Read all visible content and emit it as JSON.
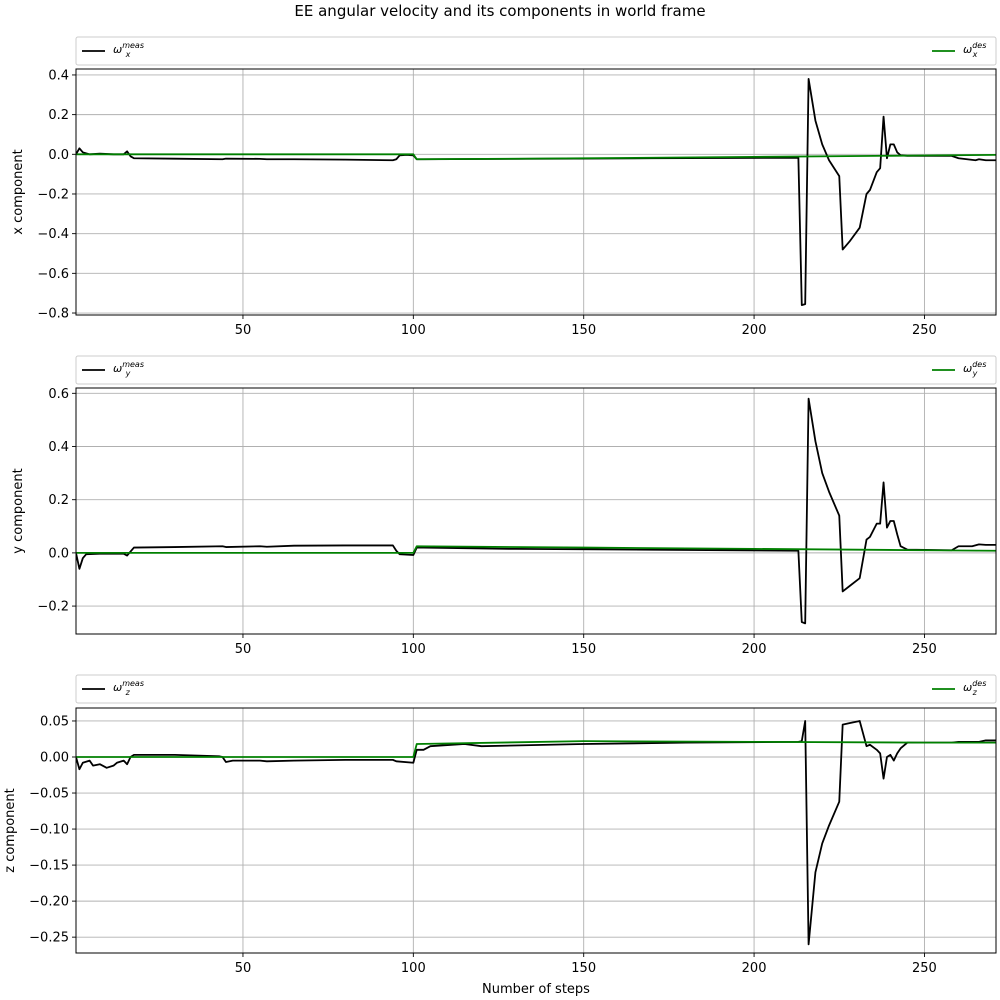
{
  "title": "EE angular velocity and its components in world frame",
  "colors": {
    "meas": "#000000",
    "des": "#008000",
    "grid": "#b0b0b0"
  },
  "chart_data": [
    {
      "type": "line",
      "ylabel": "x component",
      "xlabel": "",
      "xlim": [
        1,
        271
      ],
      "ylim": [
        -0.81,
        0.43
      ],
      "xticks": [
        50,
        100,
        150,
        200,
        250
      ],
      "xtick_labels": [
        "50",
        "100",
        "150",
        "200",
        "250"
      ],
      "yticks": [
        -0.8,
        -0.6,
        -0.4,
        -0.2,
        0.0,
        0.2,
        0.4
      ],
      "ytick_labels": [
        "−0.8",
        "−0.6",
        "−0.4",
        "−0.2",
        "0.0",
        "0.2",
        "0.4"
      ],
      "grid": true,
      "legend": {
        "left": {
          "sym": "ω",
          "sub": "x",
          "sup": "meas"
        },
        "right": {
          "sym": "ω",
          "sub": "x",
          "sup": "des"
        }
      },
      "series": [
        {
          "key": "meas",
          "points": [
            [
              1,
              0.0
            ],
            [
              2,
              0.03
            ],
            [
              3,
              0.01
            ],
            [
              5,
              0.0
            ],
            [
              8,
              0.003
            ],
            [
              12,
              0.0
            ],
            [
              15,
              0.0
            ],
            [
              16,
              0.015
            ],
            [
              17,
              -0.01
            ],
            [
              18,
              -0.02
            ],
            [
              30,
              -0.022
            ],
            [
              44,
              -0.025
            ],
            [
              45,
              -0.022
            ],
            [
              55,
              -0.023
            ],
            [
              57,
              -0.025
            ],
            [
              65,
              -0.025
            ],
            [
              80,
              -0.027
            ],
            [
              94,
              -0.03
            ],
            [
              95,
              -0.025
            ],
            [
              96,
              -0.005
            ],
            [
              98,
              -0.003
            ],
            [
              100,
              -0.005
            ],
            [
              101,
              -0.025
            ],
            [
              103,
              -0.025
            ],
            [
              130,
              -0.023
            ],
            [
              170,
              -0.02
            ],
            [
              213,
              -0.017
            ],
            [
              214,
              -0.76
            ],
            [
              215,
              -0.755
            ],
            [
              216,
              0.38
            ],
            [
              218,
              0.17
            ],
            [
              220,
              0.05
            ],
            [
              222,
              -0.03
            ],
            [
              225,
              -0.11
            ],
            [
              226,
              -0.48
            ],
            [
              228,
              -0.44
            ],
            [
              231,
              -0.37
            ],
            [
              233,
              -0.2
            ],
            [
              234,
              -0.18
            ],
            [
              236,
              -0.09
            ],
            [
              237,
              -0.07
            ],
            [
              238,
              0.19
            ],
            [
              239,
              -0.02
            ],
            [
              240,
              0.05
            ],
            [
              241,
              0.05
            ],
            [
              242,
              0.01
            ],
            [
              243,
              -0.005
            ],
            [
              245,
              -0.008
            ],
            [
              258,
              -0.008
            ],
            [
              260,
              -0.02
            ],
            [
              265,
              -0.03
            ],
            [
              266,
              -0.025
            ],
            [
              268,
              -0.03
            ],
            [
              271,
              -0.03
            ]
          ]
        },
        {
          "key": "des",
          "points": [
            [
              1,
              0.0
            ],
            [
              100,
              0.0
            ],
            [
              101,
              -0.025
            ],
            [
              150,
              -0.02
            ],
            [
              200,
              -0.013
            ],
            [
              250,
              -0.006
            ],
            [
              271,
              -0.003
            ]
          ]
        }
      ]
    },
    {
      "type": "line",
      "ylabel": "y component",
      "xlabel": "",
      "xlim": [
        1,
        271
      ],
      "ylim": [
        -0.305,
        0.62
      ],
      "xticks": [
        50,
        100,
        150,
        200,
        250
      ],
      "xtick_labels": [
        "50",
        "100",
        "150",
        "200",
        "250"
      ],
      "yticks": [
        -0.2,
        0.0,
        0.2,
        0.4,
        0.6
      ],
      "ytick_labels": [
        "−0.2",
        "0.0",
        "0.2",
        "0.4",
        "0.6"
      ],
      "grid": true,
      "legend": {
        "left": {
          "sym": "ω",
          "sub": "y",
          "sup": "meas"
        },
        "right": {
          "sym": "ω",
          "sub": "y",
          "sup": "des"
        }
      },
      "series": [
        {
          "key": "meas",
          "points": [
            [
              1,
              0.0
            ],
            [
              2,
              -0.06
            ],
            [
              3,
              -0.02
            ],
            [
              4,
              -0.005
            ],
            [
              8,
              -0.003
            ],
            [
              15,
              -0.003
            ],
            [
              16,
              -0.01
            ],
            [
              17,
              0.005
            ],
            [
              18,
              0.02
            ],
            [
              30,
              0.022
            ],
            [
              44,
              0.025
            ],
            [
              45,
              0.022
            ],
            [
              55,
              0.025
            ],
            [
              57,
              0.023
            ],
            [
              65,
              0.027
            ],
            [
              80,
              0.028
            ],
            [
              94,
              0.028
            ],
            [
              95,
              0.008
            ],
            [
              96,
              -0.005
            ],
            [
              100,
              -0.008
            ],
            [
              101,
              0.02
            ],
            [
              103,
              0.02
            ],
            [
              130,
              0.015
            ],
            [
              170,
              0.012
            ],
            [
              213,
              0.008
            ],
            [
              214,
              -0.26
            ],
            [
              215,
              -0.265
            ],
            [
              216,
              0.58
            ],
            [
              218,
              0.42
            ],
            [
              220,
              0.3
            ],
            [
              222,
              0.23
            ],
            [
              225,
              0.14
            ],
            [
              226,
              -0.145
            ],
            [
              228,
              -0.125
            ],
            [
              231,
              -0.095
            ],
            [
              233,
              0.05
            ],
            [
              234,
              0.06
            ],
            [
              236,
              0.11
            ],
            [
              237,
              0.11
            ],
            [
              238,
              0.265
            ],
            [
              239,
              0.095
            ],
            [
              240,
              0.12
            ],
            [
              241,
              0.12
            ],
            [
              242,
              0.07
            ],
            [
              243,
              0.025
            ],
            [
              245,
              0.012
            ],
            [
              258,
              0.01
            ],
            [
              260,
              0.025
            ],
            [
              264,
              0.025
            ],
            [
              266,
              0.032
            ],
            [
              268,
              0.03
            ],
            [
              271,
              0.03
            ]
          ]
        },
        {
          "key": "des",
          "points": [
            [
              1,
              0.0
            ],
            [
              100,
              0.0
            ],
            [
              101,
              0.025
            ],
            [
              150,
              0.02
            ],
            [
              200,
              0.015
            ],
            [
              250,
              0.01
            ],
            [
              271,
              0.008
            ]
          ]
        }
      ]
    },
    {
      "type": "line",
      "ylabel": "z component",
      "xlabel": "Number of steps",
      "xlim": [
        1,
        271
      ],
      "ylim": [
        -0.272,
        0.068
      ],
      "xticks": [
        50,
        100,
        150,
        200,
        250
      ],
      "xtick_labels": [
        "50",
        "100",
        "150",
        "200",
        "250"
      ],
      "yticks": [
        -0.25,
        -0.2,
        -0.15,
        -0.1,
        -0.05,
        0.0,
        0.05
      ],
      "ytick_labels": [
        "−0.25",
        "−0.20",
        "−0.15",
        "−0.10",
        "−0.05",
        "0.00",
        "0.05"
      ],
      "grid": true,
      "legend": {
        "left": {
          "sym": "ω",
          "sub": "z",
          "sup": "meas"
        },
        "right": {
          "sym": "ω",
          "sub": "z",
          "sup": "des"
        }
      },
      "series": [
        {
          "key": "meas",
          "points": [
            [
              1,
              0.0
            ],
            [
              2,
              -0.017
            ],
            [
              3,
              -0.008
            ],
            [
              5,
              -0.005
            ],
            [
              6,
              -0.012
            ],
            [
              8,
              -0.01
            ],
            [
              10,
              -0.015
            ],
            [
              12,
              -0.012
            ],
            [
              13,
              -0.008
            ],
            [
              15,
              -0.005
            ],
            [
              16,
              -0.01
            ],
            [
              17,
              0.0
            ],
            [
              18,
              0.003
            ],
            [
              30,
              0.003
            ],
            [
              43,
              0.001
            ],
            [
              44,
              0.0
            ],
            [
              45,
              -0.007
            ],
            [
              47,
              -0.005
            ],
            [
              55,
              -0.005
            ],
            [
              57,
              -0.006
            ],
            [
              65,
              -0.005
            ],
            [
              80,
              -0.004
            ],
            [
              94,
              -0.004
            ],
            [
              95,
              -0.006
            ],
            [
              100,
              -0.008
            ],
            [
              101,
              0.01
            ],
            [
              103,
              0.01
            ],
            [
              105,
              0.015
            ],
            [
              115,
              0.018
            ],
            [
              120,
              0.015
            ],
            [
              150,
              0.018
            ],
            [
              180,
              0.02
            ],
            [
              213,
              0.021
            ],
            [
              214,
              0.022
            ],
            [
              215,
              0.05
            ],
            [
              216,
              -0.26
            ],
            [
              218,
              -0.16
            ],
            [
              220,
              -0.12
            ],
            [
              222,
              -0.095
            ],
            [
              225,
              -0.062
            ],
            [
              226,
              0.045
            ],
            [
              228,
              0.047
            ],
            [
              231,
              0.05
            ],
            [
              233,
              0.015
            ],
            [
              234,
              0.017
            ],
            [
              236,
              0.01
            ],
            [
              237,
              0.005
            ],
            [
              238,
              -0.03
            ],
            [
              239,
              0.0
            ],
            [
              240,
              0.003
            ],
            [
              241,
              -0.005
            ],
            [
              242,
              0.005
            ],
            [
              243,
              0.012
            ],
            [
              245,
              0.02
            ],
            [
              258,
              0.02
            ],
            [
              260,
              0.021
            ],
            [
              264,
              0.021
            ],
            [
              266,
              0.021
            ],
            [
              268,
              0.023
            ],
            [
              271,
              0.023
            ]
          ]
        },
        {
          "key": "des",
          "points": [
            [
              1,
              0.0
            ],
            [
              100,
              0.0
            ],
            [
              101,
              0.018
            ],
            [
              150,
              0.022
            ],
            [
              200,
              0.021
            ],
            [
              250,
              0.02
            ],
            [
              271,
              0.02
            ]
          ]
        }
      ]
    }
  ]
}
